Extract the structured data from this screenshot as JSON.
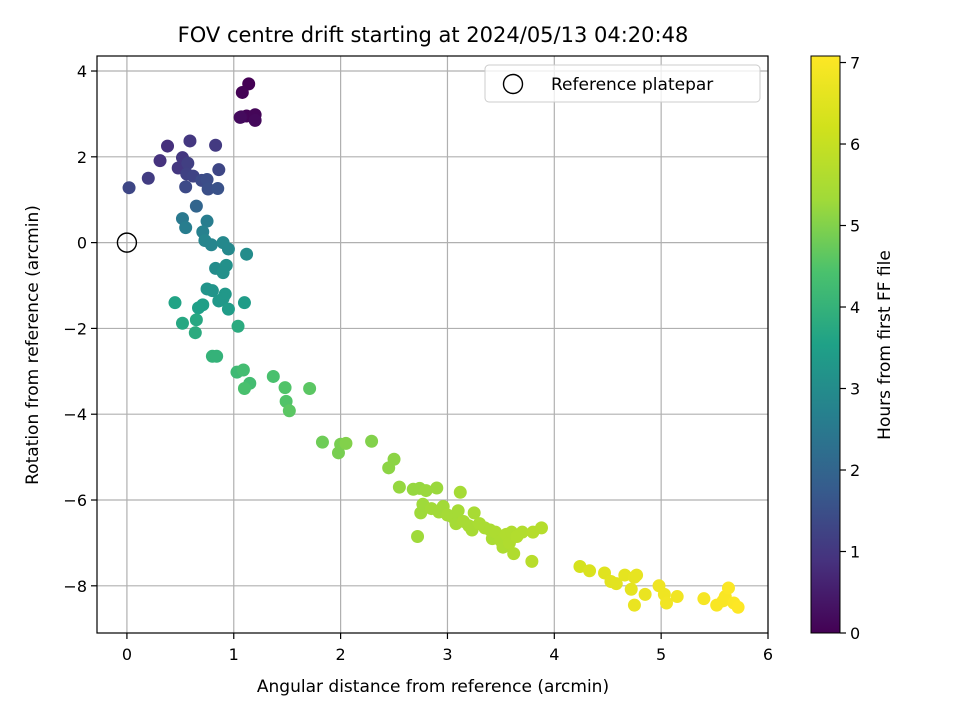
{
  "chart_data": {
    "type": "scatter",
    "title": "FOV centre drift starting at 2024/05/13 04:20:48",
    "xlabel": "Angular distance from reference (arcmin)",
    "ylabel": "Rotation from reference (arcmin)",
    "xlim": [
      -0.28,
      6.0
    ],
    "ylim": [
      -9.1,
      4.35
    ],
    "xticks": [
      0,
      1,
      2,
      3,
      4,
      5,
      6
    ],
    "yticks": [
      -8,
      -6,
      -4,
      -2,
      0,
      2,
      4
    ],
    "grid": true,
    "legend": {
      "placement": "top-right",
      "entries": [
        "Reference platepar"
      ]
    },
    "reference_point": {
      "x": 0,
      "y": 0
    },
    "colorbar": {
      "label": "Hours from first FF file",
      "colormap": "viridis",
      "range": [
        0,
        7.08
      ],
      "ticks": [
        0,
        1,
        2,
        3,
        4,
        5,
        6,
        7
      ]
    },
    "points": [
      {
        "x": 1.14,
        "y": 3.7,
        "c": 0.0
      },
      {
        "x": 1.08,
        "y": 3.5,
        "c": 0.03
      },
      {
        "x": 1.12,
        "y": 2.95,
        "c": 0.06
      },
      {
        "x": 1.2,
        "y": 2.98,
        "c": 0.09
      },
      {
        "x": 1.07,
        "y": 2.93,
        "c": 0.12
      },
      {
        "x": 1.2,
        "y": 2.85,
        "c": 0.15
      },
      {
        "x": 1.06,
        "y": 2.92,
        "c": 0.18
      },
      {
        "x": 0.38,
        "y": 2.25,
        "c": 0.85
      },
      {
        "x": 0.31,
        "y": 1.91,
        "c": 0.9
      },
      {
        "x": 0.48,
        "y": 1.74,
        "c": 1.0
      },
      {
        "x": 0.52,
        "y": 1.98,
        "c": 1.0
      },
      {
        "x": 0.59,
        "y": 2.37,
        "c": 1.0
      },
      {
        "x": 0.83,
        "y": 2.27,
        "c": 1.05
      },
      {
        "x": 0.2,
        "y": 1.5,
        "c": 1.1
      },
      {
        "x": 0.57,
        "y": 1.85,
        "c": 1.15
      },
      {
        "x": 0.56,
        "y": 1.6,
        "c": 1.2
      },
      {
        "x": 0.62,
        "y": 1.55,
        "c": 1.25
      },
      {
        "x": 0.86,
        "y": 1.7,
        "c": 1.3
      },
      {
        "x": 0.02,
        "y": 1.28,
        "c": 1.3
      },
      {
        "x": 0.55,
        "y": 1.3,
        "c": 1.4
      },
      {
        "x": 0.7,
        "y": 1.45,
        "c": 1.4
      },
      {
        "x": 0.75,
        "y": 1.47,
        "c": 1.45
      },
      {
        "x": 0.76,
        "y": 1.25,
        "c": 1.5
      },
      {
        "x": 0.85,
        "y": 1.26,
        "c": 1.55
      },
      {
        "x": 0.65,
        "y": 0.85,
        "c": 2.0
      },
      {
        "x": 0.52,
        "y": 0.56,
        "c": 2.5
      },
      {
        "x": 0.55,
        "y": 0.35,
        "c": 2.6
      },
      {
        "x": 0.75,
        "y": 0.5,
        "c": 2.6
      },
      {
        "x": 0.71,
        "y": 0.25,
        "c": 2.7
      },
      {
        "x": 0.73,
        "y": 0.05,
        "c": 2.8
      },
      {
        "x": 0.79,
        "y": -0.05,
        "c": 2.8
      },
      {
        "x": 0.9,
        "y": 0.0,
        "c": 2.9
      },
      {
        "x": 0.95,
        "y": -0.15,
        "c": 2.9
      },
      {
        "x": 1.12,
        "y": -0.27,
        "c": 3.0
      },
      {
        "x": 0.83,
        "y": -0.6,
        "c": 3.0
      },
      {
        "x": 0.93,
        "y": -0.53,
        "c": 3.1
      },
      {
        "x": 0.9,
        "y": -0.7,
        "c": 3.1
      },
      {
        "x": 0.75,
        "y": -1.08,
        "c": 3.2
      },
      {
        "x": 0.8,
        "y": -1.12,
        "c": 3.2
      },
      {
        "x": 0.86,
        "y": -1.36,
        "c": 3.3
      },
      {
        "x": 0.92,
        "y": -1.2,
        "c": 3.3
      },
      {
        "x": 0.9,
        "y": -1.3,
        "c": 3.3
      },
      {
        "x": 0.95,
        "y": -1.55,
        "c": 3.4
      },
      {
        "x": 1.1,
        "y": -1.4,
        "c": 3.4
      },
      {
        "x": 0.71,
        "y": -1.45,
        "c": 3.5
      },
      {
        "x": 0.67,
        "y": -1.52,
        "c": 3.5
      },
      {
        "x": 0.45,
        "y": -1.4,
        "c": 3.6
      },
      {
        "x": 0.52,
        "y": -1.88,
        "c": 3.7
      },
      {
        "x": 0.65,
        "y": -1.8,
        "c": 3.7
      },
      {
        "x": 0.64,
        "y": -2.1,
        "c": 3.8
      },
      {
        "x": 1.04,
        "y": -1.95,
        "c": 3.8
      },
      {
        "x": 0.8,
        "y": -2.65,
        "c": 4.0
      },
      {
        "x": 0.84,
        "y": -2.65,
        "c": 4.0
      },
      {
        "x": 1.03,
        "y": -3.02,
        "c": 4.2
      },
      {
        "x": 1.09,
        "y": -2.97,
        "c": 4.3
      },
      {
        "x": 1.15,
        "y": -3.28,
        "c": 4.3
      },
      {
        "x": 1.1,
        "y": -3.4,
        "c": 4.4
      },
      {
        "x": 1.37,
        "y": -3.12,
        "c": 4.4
      },
      {
        "x": 1.48,
        "y": -3.38,
        "c": 4.5
      },
      {
        "x": 1.49,
        "y": -3.7,
        "c": 4.5
      },
      {
        "x": 1.52,
        "y": -3.92,
        "c": 4.6
      },
      {
        "x": 1.71,
        "y": -3.4,
        "c": 4.6
      },
      {
        "x": 1.83,
        "y": -4.65,
        "c": 4.8
      },
      {
        "x": 1.98,
        "y": -4.9,
        "c": 4.9
      },
      {
        "x": 2.0,
        "y": -4.7,
        "c": 4.9
      },
      {
        "x": 2.05,
        "y": -4.68,
        "c": 5.0
      },
      {
        "x": 2.29,
        "y": -4.63,
        "c": 5.0
      },
      {
        "x": 2.45,
        "y": -5.25,
        "c": 5.1
      },
      {
        "x": 2.5,
        "y": -5.05,
        "c": 5.1
      },
      {
        "x": 2.55,
        "y": -5.7,
        "c": 5.2
      },
      {
        "x": 2.68,
        "y": -5.75,
        "c": 5.2
      },
      {
        "x": 2.74,
        "y": -5.73,
        "c": 5.2
      },
      {
        "x": 2.8,
        "y": -5.78,
        "c": 5.25
      },
      {
        "x": 2.9,
        "y": -5.72,
        "c": 5.25
      },
      {
        "x": 2.77,
        "y": -6.1,
        "c": 5.3
      },
      {
        "x": 2.75,
        "y": -6.3,
        "c": 5.3
      },
      {
        "x": 2.72,
        "y": -6.85,
        "c": 5.3
      },
      {
        "x": 2.85,
        "y": -6.2,
        "c": 5.35
      },
      {
        "x": 2.92,
        "y": -6.28,
        "c": 5.35
      },
      {
        "x": 2.96,
        "y": -6.15,
        "c": 5.35
      },
      {
        "x": 3.0,
        "y": -6.35,
        "c": 5.4
      },
      {
        "x": 3.05,
        "y": -6.4,
        "c": 5.4
      },
      {
        "x": 3.08,
        "y": -6.55,
        "c": 5.4
      },
      {
        "x": 3.1,
        "y": -6.25,
        "c": 5.4
      },
      {
        "x": 3.12,
        "y": -5.82,
        "c": 5.4
      },
      {
        "x": 3.15,
        "y": -6.5,
        "c": 5.45
      },
      {
        "x": 3.2,
        "y": -6.6,
        "c": 5.45
      },
      {
        "x": 3.23,
        "y": -6.7,
        "c": 5.45
      },
      {
        "x": 3.25,
        "y": -6.3,
        "c": 5.45
      },
      {
        "x": 3.3,
        "y": -6.55,
        "c": 5.5
      },
      {
        "x": 3.35,
        "y": -6.65,
        "c": 5.5
      },
      {
        "x": 3.4,
        "y": -6.7,
        "c": 5.5
      },
      {
        "x": 3.42,
        "y": -6.9,
        "c": 5.5
      },
      {
        "x": 3.45,
        "y": -6.75,
        "c": 5.55
      },
      {
        "x": 3.5,
        "y": -6.95,
        "c": 5.55
      },
      {
        "x": 3.52,
        "y": -7.1,
        "c": 5.55
      },
      {
        "x": 3.55,
        "y": -6.8,
        "c": 5.6
      },
      {
        "x": 3.58,
        "y": -7.0,
        "c": 5.6
      },
      {
        "x": 3.6,
        "y": -6.75,
        "c": 5.6
      },
      {
        "x": 3.62,
        "y": -7.25,
        "c": 5.6
      },
      {
        "x": 3.65,
        "y": -6.85,
        "c": 5.65
      },
      {
        "x": 3.7,
        "y": -6.75,
        "c": 5.65
      },
      {
        "x": 3.8,
        "y": -6.75,
        "c": 5.7
      },
      {
        "x": 3.88,
        "y": -6.65,
        "c": 5.7
      },
      {
        "x": 3.79,
        "y": -7.43,
        "c": 5.75
      },
      {
        "x": 4.24,
        "y": -7.55,
        "c": 6.3
      },
      {
        "x": 4.33,
        "y": -7.65,
        "c": 6.4
      },
      {
        "x": 4.47,
        "y": -7.7,
        "c": 6.5
      },
      {
        "x": 4.53,
        "y": -7.9,
        "c": 6.55
      },
      {
        "x": 4.58,
        "y": -7.95,
        "c": 6.55
      },
      {
        "x": 4.66,
        "y": -7.75,
        "c": 6.6
      },
      {
        "x": 4.72,
        "y": -8.08,
        "c": 6.6
      },
      {
        "x": 4.75,
        "y": -7.8,
        "c": 6.65
      },
      {
        "x": 4.77,
        "y": -7.75,
        "c": 6.65
      },
      {
        "x": 4.75,
        "y": -8.45,
        "c": 6.7
      },
      {
        "x": 4.85,
        "y": -8.2,
        "c": 6.7
      },
      {
        "x": 4.98,
        "y": -8.0,
        "c": 6.8
      },
      {
        "x": 5.03,
        "y": -8.2,
        "c": 6.8
      },
      {
        "x": 5.05,
        "y": -8.4,
        "c": 6.85
      },
      {
        "x": 5.15,
        "y": -8.25,
        "c": 6.85
      },
      {
        "x": 5.4,
        "y": -8.3,
        "c": 6.95
      },
      {
        "x": 5.52,
        "y": -8.45,
        "c": 7.0
      },
      {
        "x": 5.58,
        "y": -8.35,
        "c": 7.0
      },
      {
        "x": 5.6,
        "y": -8.25,
        "c": 7.0
      },
      {
        "x": 5.63,
        "y": -8.05,
        "c": 7.05
      },
      {
        "x": 5.68,
        "y": -8.4,
        "c": 7.05
      },
      {
        "x": 5.72,
        "y": -8.5,
        "c": 7.08
      }
    ]
  }
}
